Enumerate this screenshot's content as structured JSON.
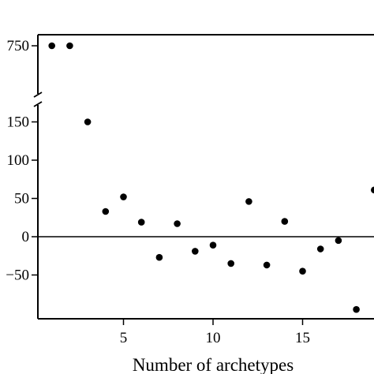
{
  "chart_data": {
    "type": "scatter",
    "title": "",
    "xlabel": "Number of archetypes",
    "ylabel": "",
    "axis_break": true,
    "xlim": [
      0,
      19
    ],
    "ylim_lower": [
      -105,
      165
    ],
    "ylim_upper_tick": 750,
    "x_ticks": [
      5,
      10,
      15
    ],
    "x_tick_labels": [
      "5",
      "10",
      "15"
    ],
    "y_ticks_lower": [
      -50,
      0,
      50,
      100,
      150
    ],
    "y_tick_labels_lower": [
      "−50",
      "0",
      "50",
      "100",
      "150"
    ],
    "y_tick_label_upper": "750",
    "reference_line": 0,
    "grid": false,
    "marker_color": "#000000",
    "points": [
      {
        "x": 1,
        "y": 750
      },
      {
        "x": 2,
        "y": 750
      },
      {
        "x": 3,
        "y": 150
      },
      {
        "x": 4,
        "y": 33
      },
      {
        "x": 5,
        "y": 52
      },
      {
        "x": 6,
        "y": 19
      },
      {
        "x": 7,
        "y": -27
      },
      {
        "x": 8,
        "y": 17
      },
      {
        "x": 9,
        "y": -19
      },
      {
        "x": 10,
        "y": -11
      },
      {
        "x": 11,
        "y": -35
      },
      {
        "x": 12,
        "y": 46
      },
      {
        "x": 13,
        "y": -37
      },
      {
        "x": 14,
        "y": 20
      },
      {
        "x": 15,
        "y": -45
      },
      {
        "x": 16,
        "y": -16
      },
      {
        "x": 17,
        "y": -5
      },
      {
        "x": 18,
        "y": -95
      },
      {
        "x": 19,
        "y": 61
      }
    ]
  }
}
